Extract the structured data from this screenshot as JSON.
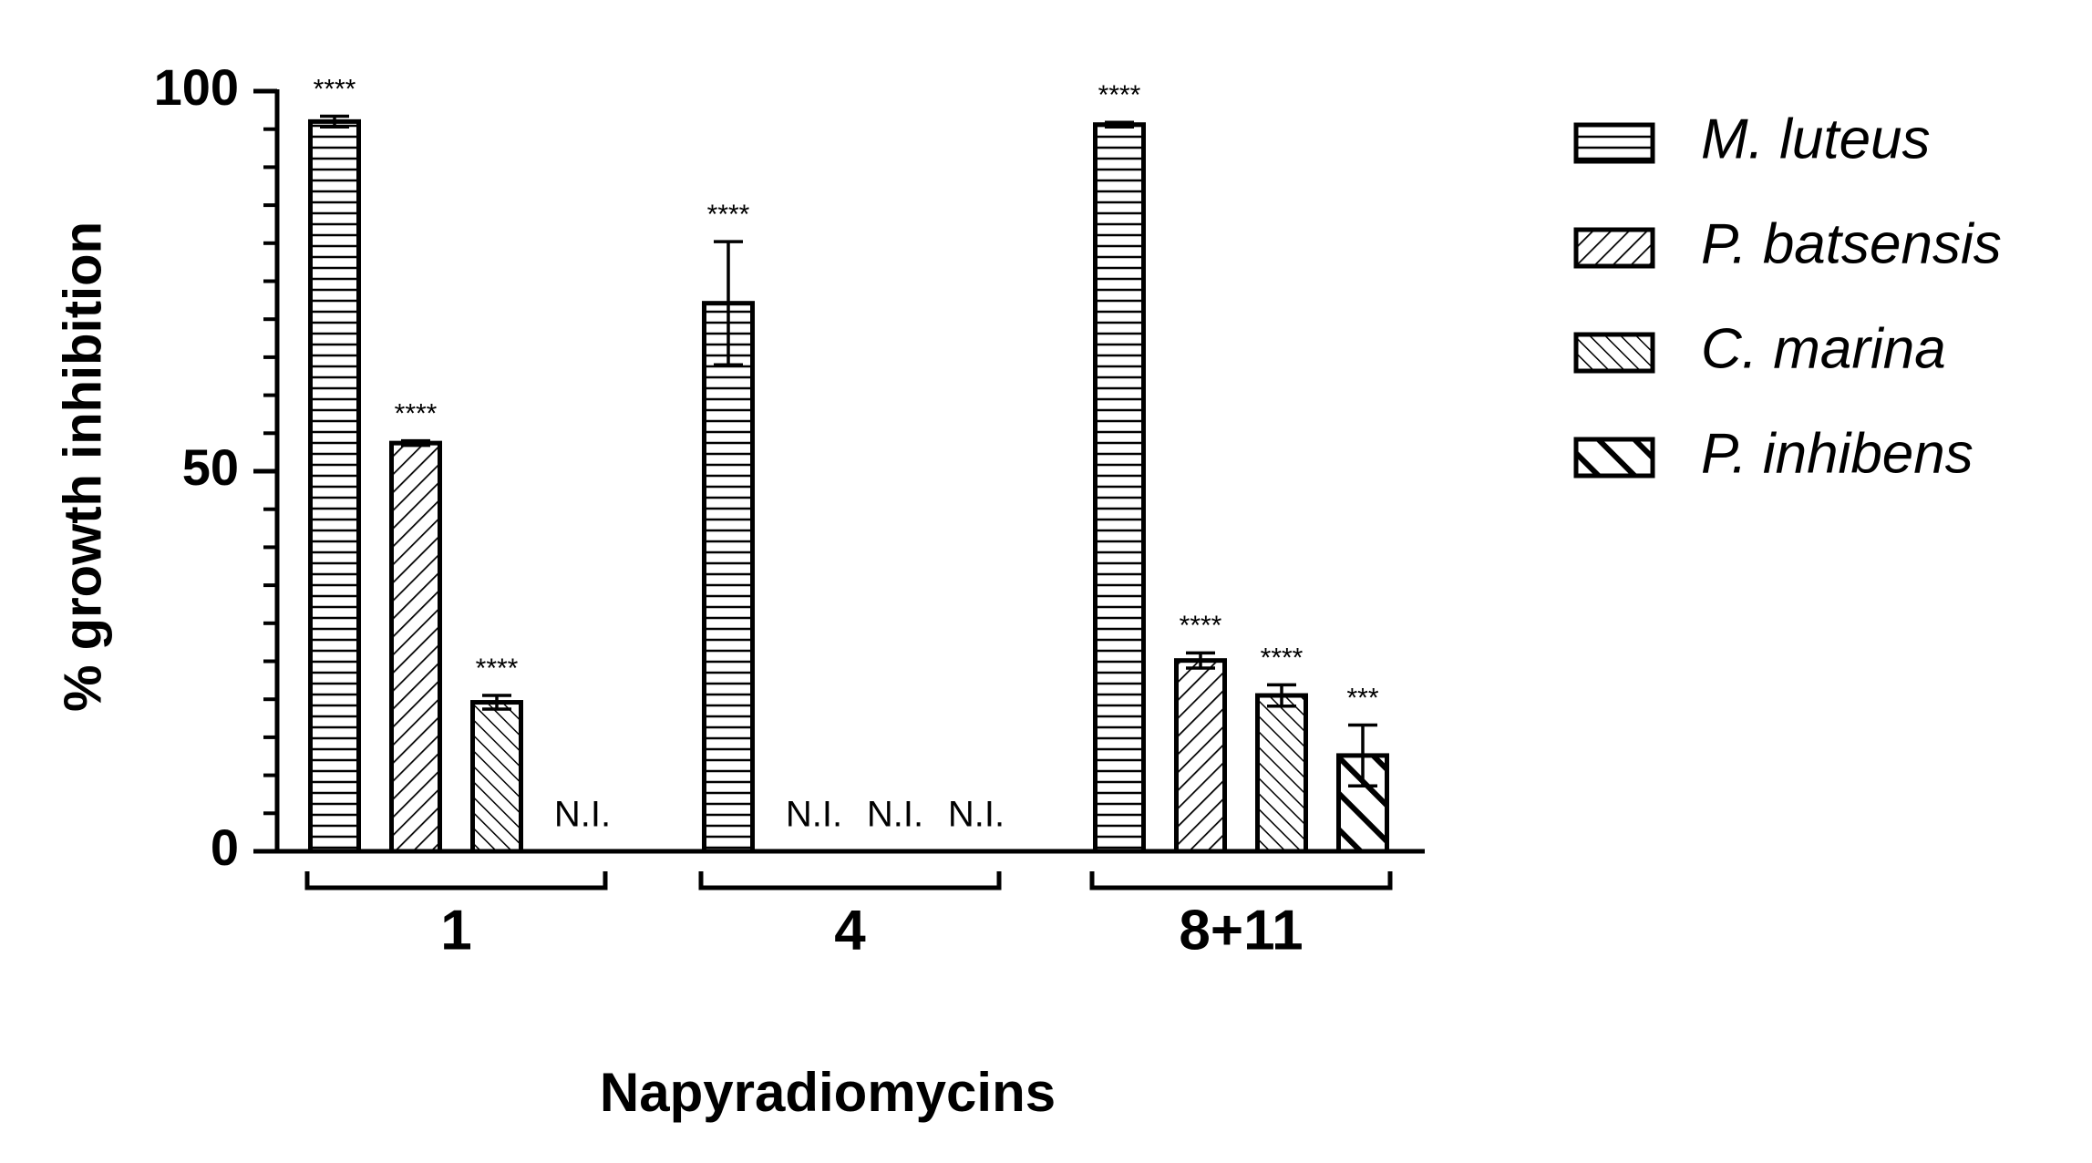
{
  "chart_data": {
    "type": "bar",
    "x_label": "Napyradiomycins",
    "y_label": "% growth inhibition",
    "categories": [
      "1",
      "4",
      "8+11"
    ],
    "series": [
      {
        "name": "M. luteus",
        "color": "#000000",
        "pattern": "horizontal",
        "values": [
          96,
          72.1,
          95.6
        ],
        "errors": [
          0.7,
          8.1,
          0.3
        ],
        "significance": [
          "****",
          "****",
          "****"
        ]
      },
      {
        "name": "P. batsensis",
        "color": "#000000",
        "pattern": "diagonal-up",
        "values": [
          53.7,
          null,
          25.1
        ],
        "errors": [
          0.3,
          null,
          1
        ],
        "significance": [
          "****",
          "N.I.",
          "****"
        ]
      },
      {
        "name": "C. marina",
        "color": "#000000",
        "pattern": "diagonal-down",
        "values": [
          19.6,
          null,
          20.5
        ],
        "errors": [
          0.9,
          null,
          1.4
        ],
        "significance": [
          "****",
          "N.I.",
          "****"
        ]
      },
      {
        "name": "P. inhibens",
        "color": "#000000",
        "pattern": "diagonal-down-wide",
        "values": [
          null,
          null,
          12.6
        ],
        "errors": [
          null,
          null,
          4
        ],
        "significance": [
          "N.I.",
          "N.I.",
          "***"
        ]
      }
    ],
    "ylim": [
      0,
      100
    ],
    "yticks": [
      0,
      50,
      100
    ],
    "yminorticks": [
      5,
      10,
      15,
      20,
      25,
      30,
      35,
      40,
      45,
      55,
      60,
      65,
      70,
      75,
      80,
      85,
      90,
      95
    ],
    "legend": "right"
  }
}
